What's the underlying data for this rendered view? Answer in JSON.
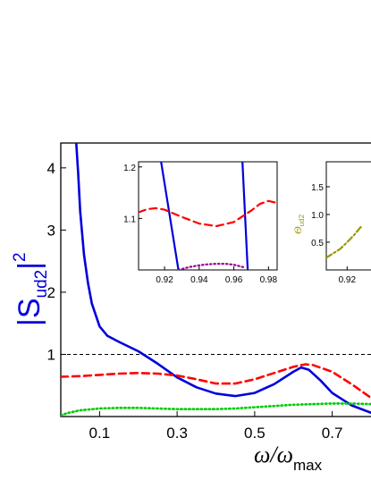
{
  "chart_data": [
    {
      "type": "line",
      "role": "main",
      "ylabel_base": "|S",
      "ylabel_sub": "ud2",
      "ylabel_bar": "|",
      "ylabel_sup": "2",
      "xlabel_symbol": "ω/ω",
      "xlabel_sub": "max",
      "xlim": [
        0,
        0.8
      ],
      "ylim": [
        0,
        4.4
      ],
      "xticks": [
        "0.1",
        "0.3",
        "0.5",
        "0.7"
      ],
      "xtick_values": [
        0.1,
        0.3,
        0.5,
        0.7
      ],
      "yticks": [
        "1",
        "2",
        "3",
        "4"
      ],
      "ytick_values": [
        1,
        2,
        3,
        4
      ],
      "reference_line": {
        "y": 1,
        "color": "#000000",
        "style": "dashed"
      },
      "series": [
        {
          "color": "#0000dd",
          "style": "solid",
          "x": [
            0.04,
            0.045,
            0.05,
            0.06,
            0.07,
            0.08,
            0.1,
            0.12,
            0.15,
            0.2,
            0.25,
            0.3,
            0.35,
            0.4,
            0.45,
            0.5,
            0.55,
            0.6,
            0.62,
            0.64,
            0.67,
            0.7,
            0.75,
            0.8
          ],
          "y": [
            4.4,
            3.9,
            3.3,
            2.6,
            2.15,
            1.82,
            1.45,
            1.3,
            1.2,
            1.05,
            0.85,
            0.63,
            0.47,
            0.37,
            0.33,
            0.38,
            0.52,
            0.72,
            0.79,
            0.75,
            0.58,
            0.38,
            0.18,
            0.06
          ]
        },
        {
          "color": "#ff0000",
          "style": "dashed",
          "x": [
            0.0,
            0.05,
            0.1,
            0.15,
            0.2,
            0.25,
            0.3,
            0.35,
            0.4,
            0.45,
            0.5,
            0.55,
            0.6,
            0.63,
            0.65,
            0.7,
            0.75,
            0.8
          ],
          "y": [
            0.64,
            0.65,
            0.67,
            0.69,
            0.7,
            0.69,
            0.66,
            0.6,
            0.53,
            0.53,
            0.6,
            0.7,
            0.8,
            0.84,
            0.83,
            0.72,
            0.52,
            0.3
          ]
        },
        {
          "color": "#00cc00",
          "style": "dotted",
          "x": [
            0.0,
            0.02,
            0.05,
            0.1,
            0.15,
            0.2,
            0.25,
            0.3,
            0.35,
            0.4,
            0.45,
            0.5,
            0.55,
            0.6,
            0.65,
            0.7,
            0.75,
            0.8
          ],
          "y": [
            0.02,
            0.06,
            0.1,
            0.13,
            0.14,
            0.14,
            0.13,
            0.12,
            0.12,
            0.12,
            0.13,
            0.15,
            0.17,
            0.19,
            0.2,
            0.21,
            0.21,
            0.2
          ]
        }
      ]
    },
    {
      "type": "line",
      "role": "inset-1",
      "xlim": [
        0.905,
        0.985
      ],
      "ylim": [
        1.0,
        1.21
      ],
      "xticks": [
        "0.92",
        "0.94",
        "0.96",
        "0.98"
      ],
      "xtick_values": [
        0.92,
        0.94,
        0.96,
        0.98
      ],
      "yticks": [
        "1.1",
        "1.2"
      ],
      "ytick_values": [
        1.1,
        1.2
      ],
      "series": [
        {
          "color": "#0000dd",
          "style": "solid",
          "x": [
            0.918,
            0.928
          ],
          "y": [
            1.21,
            1.0
          ]
        },
        {
          "color": "#0000dd",
          "style": "solid",
          "x": [
            0.965,
            0.968
          ],
          "y": [
            1.21,
            1.0
          ]
        },
        {
          "color": "#ff0000",
          "style": "dashed",
          "x": [
            0.905,
            0.91,
            0.915,
            0.92,
            0.93,
            0.94,
            0.95,
            0.96,
            0.97,
            0.975,
            0.98,
            0.985
          ],
          "y": [
            1.112,
            1.118,
            1.12,
            1.117,
            1.103,
            1.09,
            1.085,
            1.093,
            1.115,
            1.128,
            1.134,
            1.13
          ]
        },
        {
          "color": "#990099",
          "style": "dotted",
          "x": [
            0.928,
            0.935,
            0.94,
            0.945,
            0.95,
            0.955,
            0.96,
            0.966
          ],
          "y": [
            1.0,
            1.006,
            1.009,
            1.011,
            1.012,
            1.012,
            1.01,
            1.005
          ]
        }
      ]
    },
    {
      "type": "line",
      "role": "inset-2",
      "ylabel": "Θ",
      "ylabel_sub": "ud2",
      "xlim": [
        0.905,
        0.95
      ],
      "ylim": [
        0.0,
        1.95
      ],
      "xticks": [
        "0.92"
      ],
      "xtick_values": [
        0.92
      ],
      "yticks": [
        "0.5",
        "1.0",
        "1.5"
      ],
      "ytick_values": [
        0.5,
        1.0,
        1.5
      ],
      "series": [
        {
          "color": "#999900",
          "style": "dashdot",
          "x": [
            0.905,
            0.91,
            0.915,
            0.92,
            0.925,
            0.93
          ],
          "y": [
            0.22,
            0.3,
            0.38,
            0.5,
            0.63,
            0.78
          ]
        }
      ]
    }
  ]
}
